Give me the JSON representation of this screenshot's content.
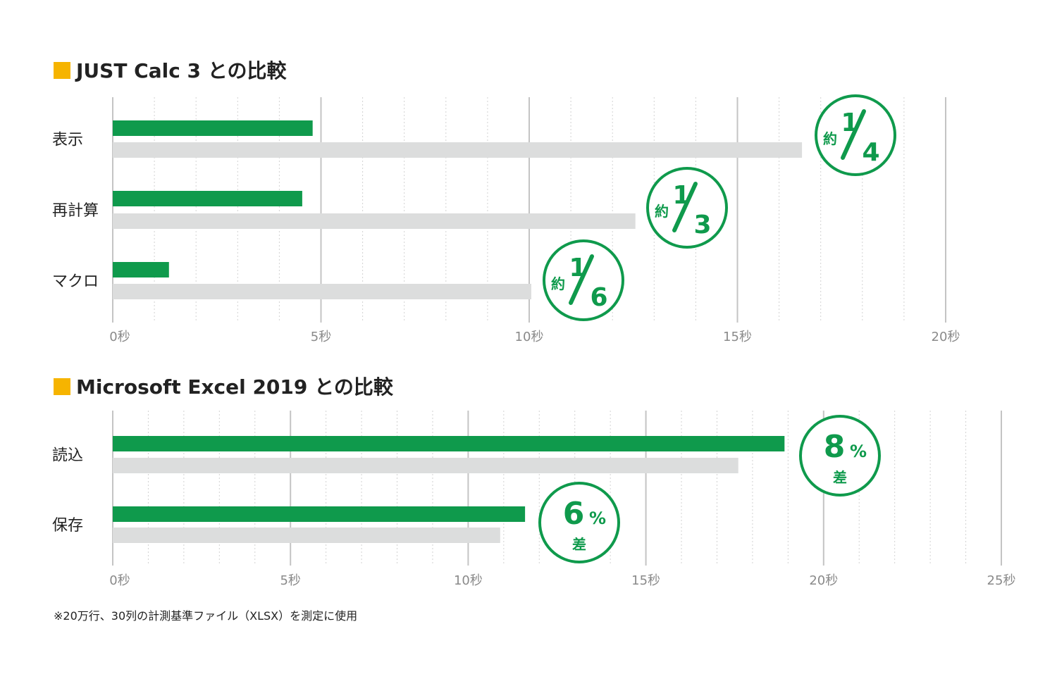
{
  "colors": {
    "accent_square": "#f6b400",
    "primary_bar": "#0f9a4c",
    "secondary_bar": "#dcdddd",
    "badge": "#0f9a4c",
    "grid_major": "#c4c4c4",
    "grid_minor": "#d2d2d2",
    "text": "#222222",
    "tick_text": "#8a8a8a"
  },
  "footnote": "※20万行、30列の計測基準ファイル（XLSX）を測定に使用",
  "chart_data": [
    {
      "type": "bar",
      "orientation": "horizontal",
      "title": "JUST Calc 3 との比較",
      "categories": [
        "表示",
        "再計算",
        "マクロ"
      ],
      "series": [
        {
          "values": [
            4.8,
            4.55,
            1.35
          ],
          "color": "#0f9a4c"
        },
        {
          "values": [
            16.55,
            12.55,
            10.05
          ],
          "color": "#dcdddd"
        }
      ],
      "xlim": [
        0,
        20
      ],
      "xticks": [
        0,
        5,
        10,
        15,
        20
      ],
      "xtick_labels": [
        "0秒",
        "5秒",
        "10秒",
        "15秒",
        "20秒"
      ],
      "minor_step": 1,
      "grid": true,
      "annotations": [
        {
          "prefix": "約",
          "numerator": "1",
          "denominator": "4"
        },
        {
          "prefix": "約",
          "numerator": "1",
          "denominator": "3"
        },
        {
          "prefix": "約",
          "numerator": "1",
          "denominator": "6"
        }
      ]
    },
    {
      "type": "bar",
      "orientation": "horizontal",
      "title": "Microsoft Excel 2019 との比較",
      "categories": [
        "読込",
        "保存"
      ],
      "series": [
        {
          "values": [
            18.9,
            11.6
          ],
          "color": "#0f9a4c"
        },
        {
          "values": [
            17.6,
            10.9
          ],
          "color": "#dcdddd"
        }
      ],
      "xlim": [
        0,
        25
      ],
      "xticks": [
        0,
        5,
        10,
        15,
        20,
        25
      ],
      "xtick_labels": [
        "0秒",
        "5秒",
        "10秒",
        "15秒",
        "20秒",
        "25秒"
      ],
      "minor_step": 1,
      "grid": true,
      "annotations": [
        {
          "value": "8",
          "unit": "%",
          "sub": "差"
        },
        {
          "value": "6",
          "unit": "%",
          "sub": "差"
        }
      ]
    }
  ]
}
